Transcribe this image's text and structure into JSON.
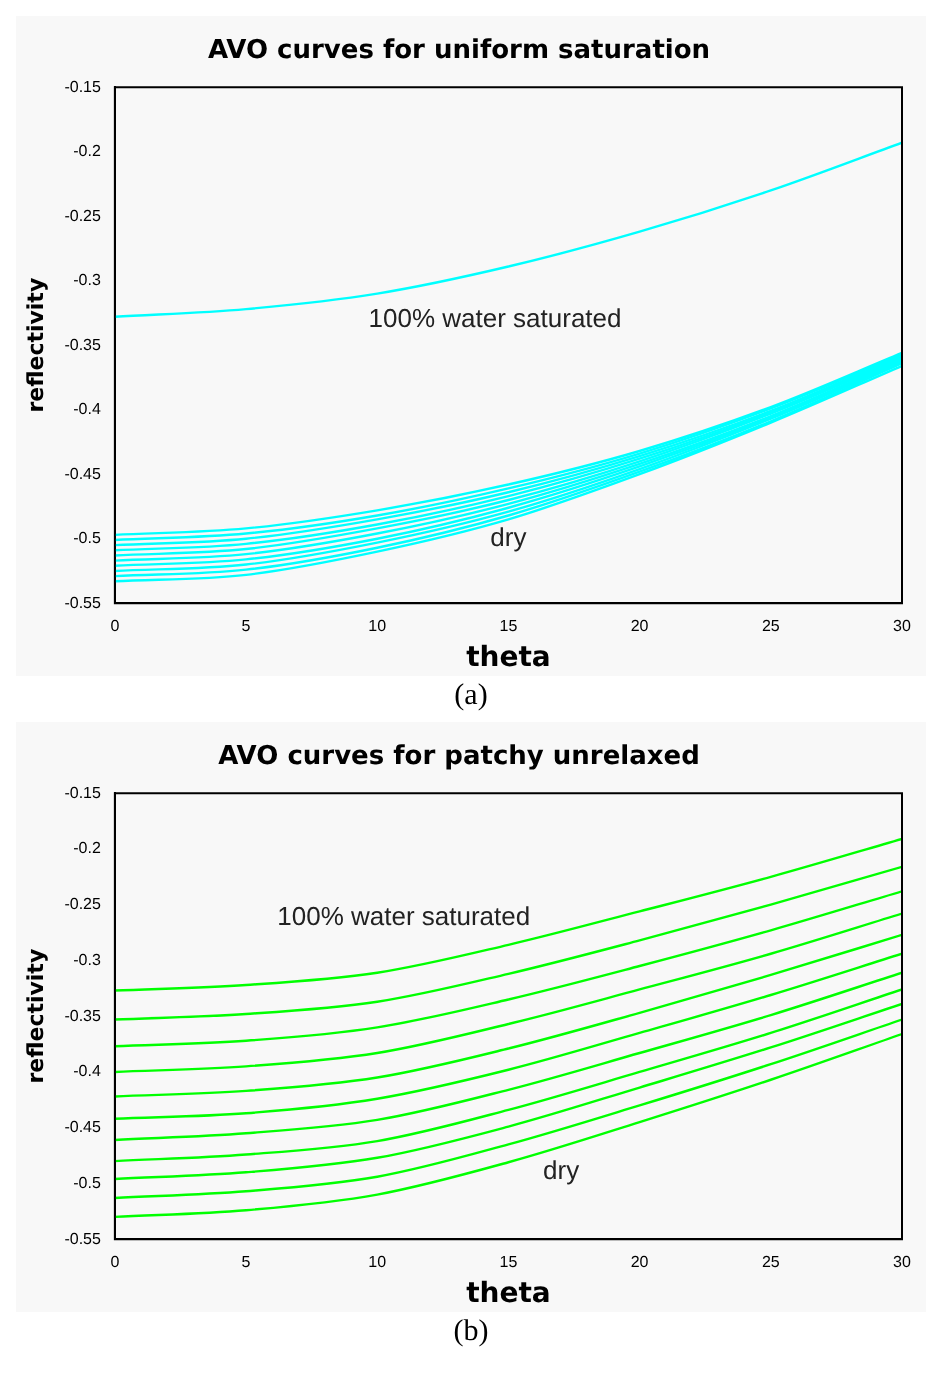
{
  "chart_data": [
    {
      "type": "line",
      "title": "AVO curves for uniform saturation",
      "xlabel": "theta",
      "ylabel": "reflectivity",
      "x": [
        0,
        5,
        10,
        15,
        20,
        25,
        30
      ],
      "xlim": [
        0,
        30
      ],
      "ylim": [
        -0.55,
        -0.15
      ],
      "xticks": [
        0,
        5,
        10,
        15,
        20,
        25,
        30
      ],
      "yticks": [
        -0.55,
        -0.5,
        -0.45,
        -0.4,
        -0.35,
        -0.3,
        -0.25,
        -0.2,
        -0.15
      ],
      "series": [
        {
          "color": "#00ffff",
          "values": [
            -0.328,
            -0.322,
            -0.31,
            -0.289,
            -0.262,
            -0.23,
            -0.193
          ]
        },
        {
          "color": "#00ffff",
          "values": [
            -0.497,
            -0.492,
            -0.478,
            -0.458,
            -0.432,
            -0.398,
            -0.356
          ]
        },
        {
          "color": "#00ffff",
          "values": [
            -0.501,
            -0.496,
            -0.482,
            -0.461,
            -0.434,
            -0.399,
            -0.357
          ]
        },
        {
          "color": "#00ffff",
          "values": [
            -0.505,
            -0.5,
            -0.485,
            -0.464,
            -0.436,
            -0.401,
            -0.358
          ]
        },
        {
          "color": "#00ffff",
          "values": [
            -0.509,
            -0.504,
            -0.489,
            -0.467,
            -0.438,
            -0.402,
            -0.359
          ]
        },
        {
          "color": "#00ffff",
          "values": [
            -0.513,
            -0.508,
            -0.492,
            -0.47,
            -0.44,
            -0.403,
            -0.36
          ]
        },
        {
          "color": "#00ffff",
          "values": [
            -0.517,
            -0.512,
            -0.496,
            -0.473,
            -0.442,
            -0.405,
            -0.361
          ]
        },
        {
          "color": "#00ffff",
          "values": [
            -0.521,
            -0.516,
            -0.5,
            -0.476,
            -0.444,
            -0.406,
            -0.362
          ]
        },
        {
          "color": "#00ffff",
          "values": [
            -0.525,
            -0.52,
            -0.503,
            -0.479,
            -0.446,
            -0.407,
            -0.363
          ]
        },
        {
          "color": "#00ffff",
          "values": [
            -0.529,
            -0.524,
            -0.507,
            -0.482,
            -0.448,
            -0.409,
            -0.364
          ]
        },
        {
          "color": "#00ffff",
          "values": [
            -0.533,
            -0.528,
            -0.51,
            -0.485,
            -0.45,
            -0.41,
            -0.366
          ]
        }
      ],
      "annotations": [
        "100% water saturated",
        "dry",
        "(a)"
      ]
    },
    {
      "type": "line",
      "title": "AVO curves for patchy unrelaxed",
      "xlabel": "theta",
      "ylabel": "reflectivity",
      "x": [
        0,
        5,
        10,
        15,
        20,
        25,
        30
      ],
      "xlim": [
        0,
        30
      ],
      "ylim": [
        -0.55,
        -0.15
      ],
      "xticks": [
        0,
        5,
        10,
        15,
        20,
        25,
        30
      ],
      "yticks": [
        -0.55,
        -0.5,
        -0.45,
        -0.4,
        -0.35,
        -0.3,
        -0.25,
        -0.2,
        -0.15
      ],
      "series": [
        {
          "color": "#00ff00",
          "values": [
            -0.327,
            -0.322,
            -0.311,
            -0.286,
            -0.256,
            -0.225,
            -0.191
          ]
        },
        {
          "color": "#00ff00",
          "values": [
            -0.353,
            -0.348,
            -0.337,
            -0.312,
            -0.282,
            -0.25,
            -0.216
          ]
        },
        {
          "color": "#00ff00",
          "values": [
            -0.377,
            -0.372,
            -0.36,
            -0.335,
            -0.305,
            -0.273,
            -0.238
          ]
        },
        {
          "color": "#00ff00",
          "values": [
            -0.4,
            -0.395,
            -0.383,
            -0.357,
            -0.326,
            -0.294,
            -0.258
          ]
        },
        {
          "color": "#00ff00",
          "values": [
            -0.422,
            -0.417,
            -0.405,
            -0.379,
            -0.347,
            -0.313,
            -0.277
          ]
        },
        {
          "color": "#00ff00",
          "values": [
            -0.442,
            -0.437,
            -0.424,
            -0.398,
            -0.365,
            -0.331,
            -0.294
          ]
        },
        {
          "color": "#00ff00",
          "values": [
            -0.461,
            -0.455,
            -0.443,
            -0.416,
            -0.383,
            -0.349,
            -0.311
          ]
        },
        {
          "color": "#00ff00",
          "values": [
            -0.48,
            -0.474,
            -0.462,
            -0.434,
            -0.4,
            -0.365,
            -0.326
          ]
        },
        {
          "color": "#00ff00",
          "values": [
            -0.496,
            -0.49,
            -0.477,
            -0.449,
            -0.414,
            -0.378,
            -0.339
          ]
        },
        {
          "color": "#00ff00",
          "values": [
            -0.513,
            -0.507,
            -0.494,
            -0.465,
            -0.43,
            -0.393,
            -0.353
          ]
        },
        {
          "color": "#00ff00",
          "values": [
            -0.53,
            -0.524,
            -0.51,
            -0.481,
            -0.445,
            -0.407,
            -0.366
          ]
        }
      ],
      "annotations": [
        "100% water saturated",
        "dry",
        "(b)"
      ]
    }
  ]
}
